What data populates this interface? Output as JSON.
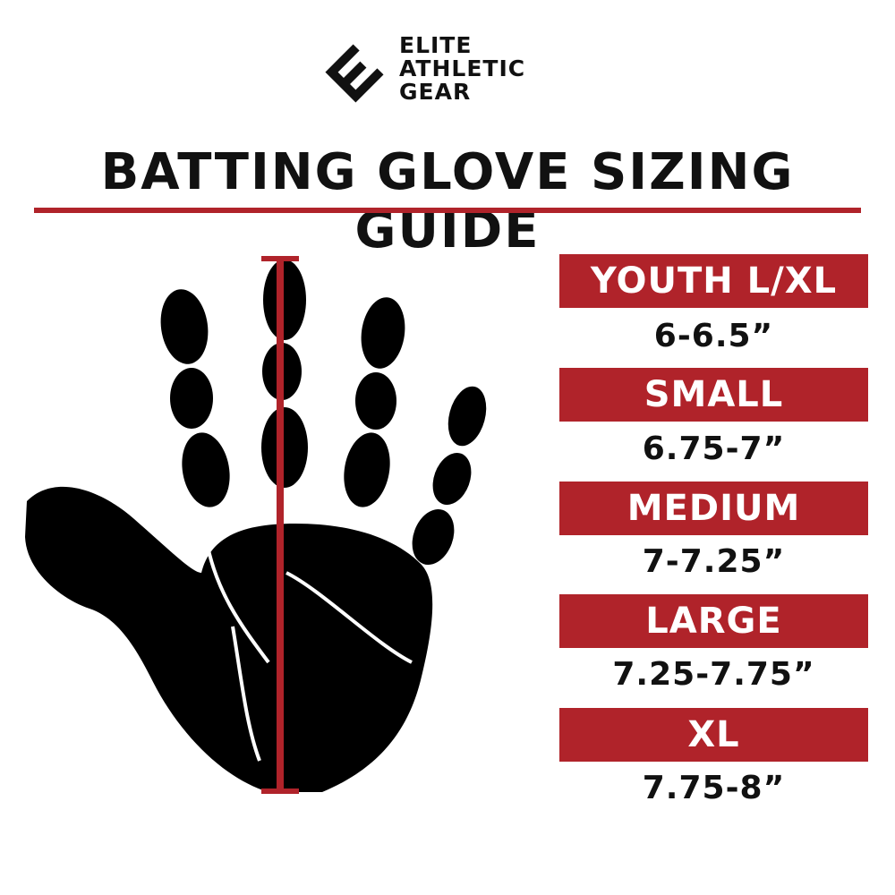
{
  "brand": {
    "logo_lines": [
      "ELITE",
      "ATHLETIC",
      "GEAR"
    ]
  },
  "title": "BATTING GLOVE SIZING GUIDE",
  "colors": {
    "accent": "#b0232a",
    "text": "#111111"
  },
  "sizes": [
    {
      "label": "YOUTH L/XL",
      "range": "6-6.5”"
    },
    {
      "label": "SMALL",
      "range": "6.75-7”"
    },
    {
      "label": "MEDIUM",
      "range": "7-7.25”"
    },
    {
      "label": "LARGE",
      "range": "7.25-7.75”"
    },
    {
      "label": "XL",
      "range": "7.75-8”"
    }
  ]
}
